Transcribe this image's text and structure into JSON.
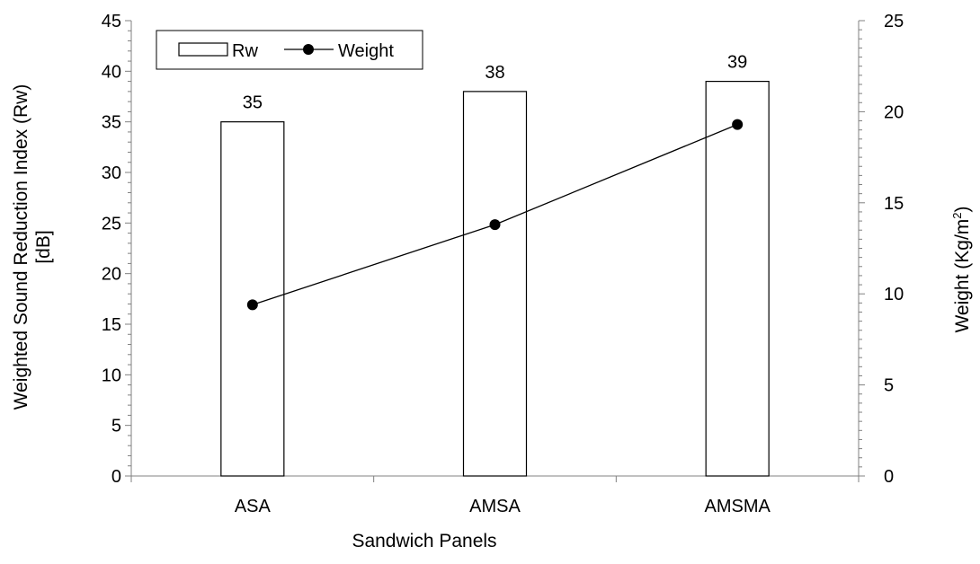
{
  "chart_data": {
    "type": "bar",
    "categories": [
      "ASA",
      "AMSA",
      "AMSMA"
    ],
    "xlabel": "Sandwich Panels",
    "series": [
      {
        "name": "Rw",
        "type": "bar",
        "axis": "left",
        "values": [
          35,
          38,
          39
        ],
        "data_labels": [
          "35",
          "38",
          "39"
        ],
        "color": "#ffffff",
        "stroke": "#000000"
      },
      {
        "name": "Weight",
        "type": "line",
        "axis": "right",
        "marker": "circle",
        "values": [
          9.4,
          13.8,
          19.3
        ],
        "color": "#000000"
      }
    ],
    "y_left": {
      "label_line1": "Weighted Sound Reduction Index (Rw)",
      "label_line2": "[dB]",
      "ylim": [
        0,
        45
      ],
      "ticks": [
        0,
        5,
        10,
        15,
        20,
        25,
        30,
        35,
        40,
        45
      ]
    },
    "y_right": {
      "label_main": "Weight (Kg/m",
      "label_sup": "2",
      "label_end": ")",
      "ylim": [
        0,
        25
      ],
      "ticks": [
        0,
        5,
        10,
        15,
        20,
        25
      ]
    },
    "grid": false,
    "legend_position": "top-left"
  },
  "colors": {
    "axis": "#808080",
    "bar_fill": "#ffffff",
    "bar_stroke": "#000000",
    "line": "#000000"
  }
}
